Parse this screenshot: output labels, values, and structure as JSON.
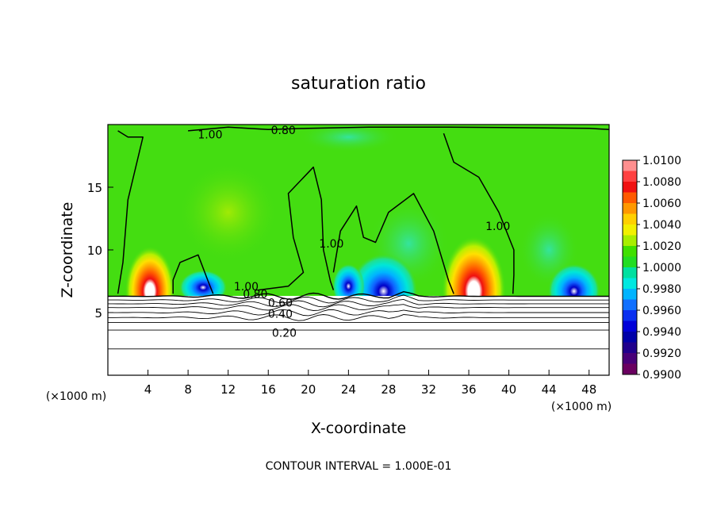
{
  "chart_data": {
    "type": "heatmap",
    "title": "saturation ratio",
    "xlabel": "X-coordinate",
    "ylabel": "Z-coordinate",
    "x_unit": "(×1000 m)",
    "y_unit": "(×1000 m)",
    "footer": "CONTOUR INTERVAL = 1.000E-01",
    "xlim": [
      0,
      50
    ],
    "ylim": [
      0,
      20
    ],
    "x_ticks": [
      4,
      8,
      12,
      16,
      20,
      24,
      28,
      32,
      36,
      40,
      44,
      48
    ],
    "y_ticks": [
      5,
      10,
      15
    ],
    "colorbar": {
      "ticks": [
        "1.0100",
        "1.0080",
        "1.0060",
        "1.0040",
        "1.0020",
        "1.0000",
        "0.9980",
        "0.9960",
        "0.9940",
        "0.9920",
        "0.9900"
      ],
      "colors": [
        "#ff8f8f",
        "#ff4040",
        "#f01010",
        "#ff5a00",
        "#ff9800",
        "#ffd000",
        "#f2f000",
        "#a8ee00",
        "#40e000",
        "#22dd22",
        "#00e0a0",
        "#00e8e0",
        "#00b4ff",
        "#1070ff",
        "#0a30f0",
        "#0000d8",
        "#0000a8",
        "#20008c",
        "#480078",
        "#6a0060"
      ]
    },
    "contour_labels": [
      {
        "text": "0.80",
        "x": 17.5,
        "z": 19.55
      },
      {
        "text": "1.00",
        "x": 10.2,
        "z": 19.2
      },
      {
        "text": "1.00",
        "x": 22.3,
        "z": 10.5
      },
      {
        "text": "1.00",
        "x": 38.9,
        "z": 11.9
      },
      {
        "text": "1.00",
        "x": 13.8,
        "z": 7.1
      },
      {
        "text": "0.80",
        "x": 14.7,
        "z": 6.5
      },
      {
        "text": "0.60",
        "x": 17.2,
        "z": 5.8
      },
      {
        "text": "0.40",
        "x": 17.2,
        "z": 4.9
      },
      {
        "text": "0.20",
        "x": 17.6,
        "z": 3.4
      }
    ],
    "stable_levels_z": [
      6.3,
      6.0,
      5.7,
      5.4,
      5.0,
      4.6,
      4.2,
      3.6,
      2.1
    ],
    "hotspots": [
      {
        "x": 4.2,
        "z": 6.7,
        "rx": 2.5,
        "rz": 3.6,
        "kind": "supersaturated"
      },
      {
        "x": 36.5,
        "z": 6.7,
        "rx": 3.2,
        "rz": 4.4,
        "kind": "supersaturated"
      },
      {
        "x": 27.5,
        "z": 6.7,
        "rx": 3.4,
        "rz": 3.0,
        "kind": "subsaturated"
      },
      {
        "x": 46.5,
        "z": 6.7,
        "rx": 2.6,
        "rz": 2.2,
        "kind": "subsaturated"
      },
      {
        "x": 9.5,
        "z": 7.0,
        "rx": 2.4,
        "rz": 1.4,
        "kind": "subsaturated"
      },
      {
        "x": 24.0,
        "z": 7.1,
        "rx": 1.6,
        "rz": 1.8,
        "kind": "subsaturated"
      }
    ],
    "grid": false,
    "legend": "colorbar-right"
  }
}
